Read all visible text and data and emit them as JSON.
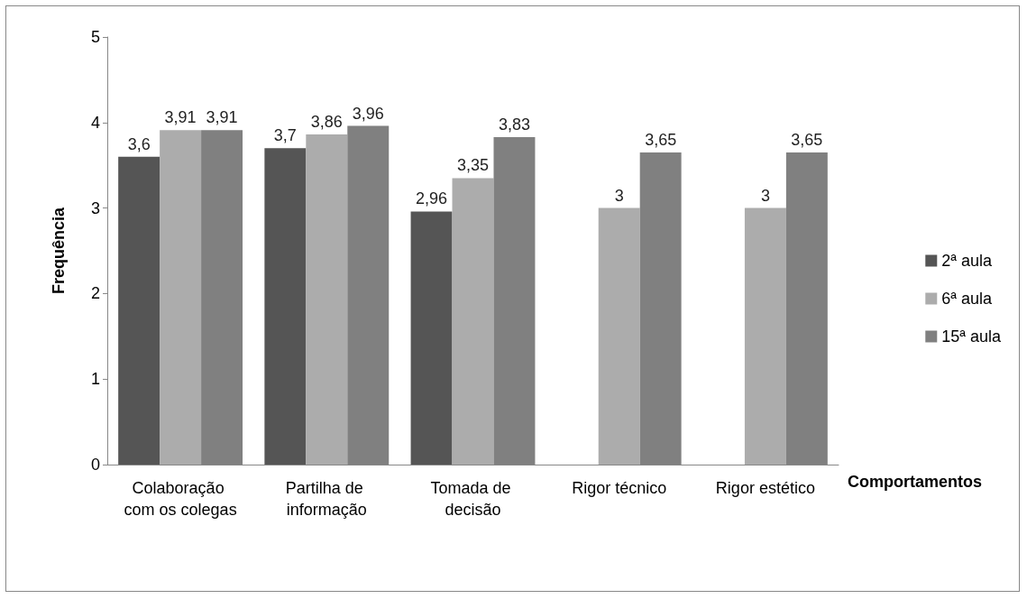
{
  "chart_data": {
    "type": "bar",
    "xlabel": "Comportamentos",
    "ylabel": "Frequência",
    "categories": [
      "Colaboração com os colegas",
      "Partilha de informação",
      "Tomada de decisão",
      "Rigor técnico",
      "Rigor estético"
    ],
    "series": [
      {
        "name": "2ª aula",
        "color": "#555555",
        "values": [
          3.6,
          3.7,
          2.96,
          null,
          null
        ],
        "value_labels": [
          "3,6",
          "3,7",
          "2,96",
          null,
          null
        ]
      },
      {
        "name": "6ª aula",
        "color": "#acacac",
        "values": [
          3.91,
          3.86,
          3.35,
          3,
          3
        ],
        "value_labels": [
          "3,91",
          "3,86",
          "3,35",
          "3",
          "3"
        ]
      },
      {
        "name": "15ª aula",
        "color": "#808080",
        "values": [
          3.91,
          3.96,
          3.83,
          3.65,
          3.65
        ],
        "value_labels": [
          "3,91",
          "3,96",
          "3,83",
          "3,65",
          "3,65"
        ]
      }
    ],
    "ylim": [
      0,
      5
    ],
    "yticks": [
      0,
      1,
      2,
      3,
      4,
      5
    ],
    "grid": false,
    "legend": "right"
  }
}
